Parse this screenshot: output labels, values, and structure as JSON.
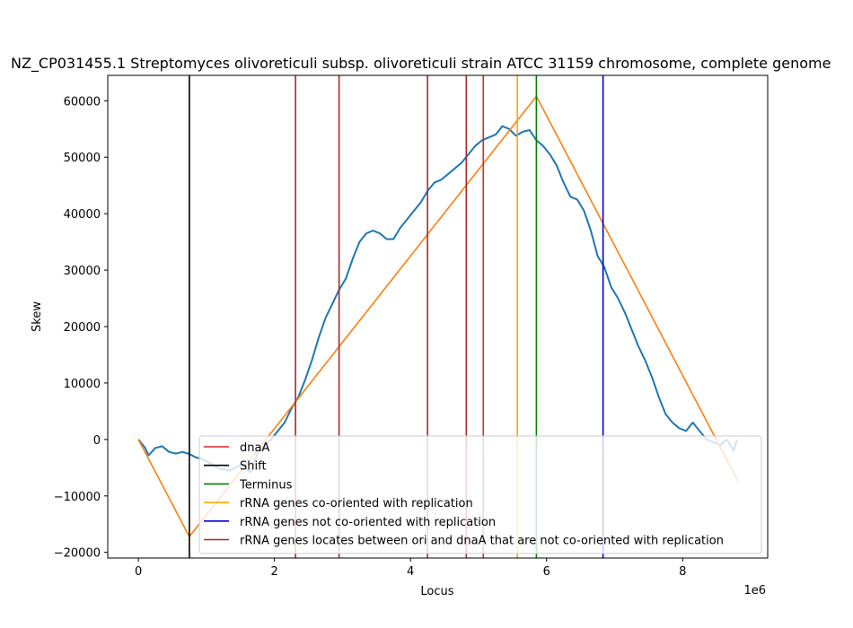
{
  "chart_data": {
    "type": "line",
    "title": "NZ_CP031455.1 Streptomyces olivoreticuli subsp. olivoreticuli strain ATCC 31159 chromosome, complete genome",
    "xlabel": "Locus",
    "ylabel": "Skew",
    "x_offset_text": "1e6",
    "xlim": [
      -0.45,
      9.25
    ],
    "ylim": [
      -21000,
      64500
    ],
    "x_ticks": [
      0,
      2,
      4,
      6,
      8
    ],
    "x_tick_labels": [
      "0",
      "2",
      "4",
      "6",
      "8"
    ],
    "y_ticks": [
      -20000,
      -10000,
      0,
      10000,
      20000,
      30000,
      40000,
      50000,
      60000
    ],
    "y_tick_labels": [
      "−20000",
      "−10000",
      "0",
      "10000",
      "20000",
      "30000",
      "40000",
      "50000",
      "60000"
    ],
    "grid": false,
    "legend_position": "lower-right",
    "skew_series": {
      "color": "#1f77b4",
      "x": [
        0,
        0.1,
        0.15,
        0.25,
        0.35,
        0.45,
        0.55,
        0.65,
        0.75,
        0.85,
        0.95,
        1.05,
        1.2,
        1.35,
        1.5,
        1.65,
        1.75,
        1.85,
        1.95,
        2.05,
        2.15,
        2.25,
        2.35,
        2.45,
        2.55,
        2.65,
        2.75,
        2.85,
        2.95,
        3.05,
        3.15,
        3.25,
        3.35,
        3.45,
        3.55,
        3.65,
        3.75,
        3.85,
        3.95,
        4.05,
        4.15,
        4.25,
        4.35,
        4.45,
        4.55,
        4.65,
        4.75,
        4.85,
        4.95,
        5.05,
        5.15,
        5.25,
        5.35,
        5.45,
        5.55,
        5.65,
        5.75,
        5.85,
        5.95,
        6.05,
        6.15,
        6.25,
        6.35,
        6.45,
        6.55,
        6.65,
        6.75,
        6.85,
        6.95,
        7.05,
        7.15,
        7.25,
        7.35,
        7.45,
        7.55,
        7.65,
        7.75,
        7.85,
        7.95,
        8.05,
        8.15,
        8.25,
        8.35,
        8.45,
        8.55,
        8.65,
        8.75,
        8.8
      ],
      "y": [
        0,
        -1500,
        -2800,
        -1500,
        -1200,
        -2200,
        -2500,
        -2200,
        -2600,
        -3200,
        -3500,
        -4200,
        -5200,
        -5500,
        -4500,
        -5800,
        -2500,
        -1200,
        0,
        1500,
        3000,
        5500,
        7500,
        10500,
        14000,
        18000,
        21500,
        24000,
        26500,
        28500,
        32000,
        35000,
        36500,
        37000,
        36500,
        35500,
        35500,
        37500,
        39000,
        40500,
        42000,
        44000,
        45500,
        46000,
        47000,
        48000,
        49000,
        50500,
        52000,
        53000,
        53500,
        54000,
        55500,
        55000,
        53800,
        54500,
        54800,
        53000,
        52000,
        50500,
        48500,
        45500,
        43000,
        42500,
        40500,
        37000,
        32500,
        30500,
        27000,
        25000,
        22500,
        19500,
        16500,
        14000,
        11000,
        7500,
        4500,
        3000,
        2000,
        1500,
        3000,
        1500,
        0,
        -500,
        -1000,
        0,
        -2000,
        0
      ]
    },
    "fit_series": {
      "color": "#ff7f0e",
      "x": [
        0,
        0.75,
        5.85,
        8.82
      ],
      "y": [
        0,
        -17200,
        60800,
        -7500
      ]
    },
    "vlines": [
      {
        "label": "dnaA",
        "color": "#d62728",
        "x": [
          5.07
        ]
      },
      {
        "label": "Shift",
        "color": "#000000",
        "x": [
          0.75
        ]
      },
      {
        "label": "Terminus",
        "color": "#008000",
        "x": [
          5.85
        ]
      },
      {
        "label": "rRNA genes co-oriented with replication",
        "color": "#ffa500",
        "x": [
          5.57
        ]
      },
      {
        "label": "rRNA genes not co-oriented with replication",
        "color": "#0000cd",
        "x": [
          6.83
        ]
      },
      {
        "label": "rRNA genes locates between ori and dnaA that are not co-oriented with replication",
        "color": "#a52a2a",
        "x": [
          2.31,
          2.95,
          4.25,
          4.82
        ]
      }
    ]
  }
}
